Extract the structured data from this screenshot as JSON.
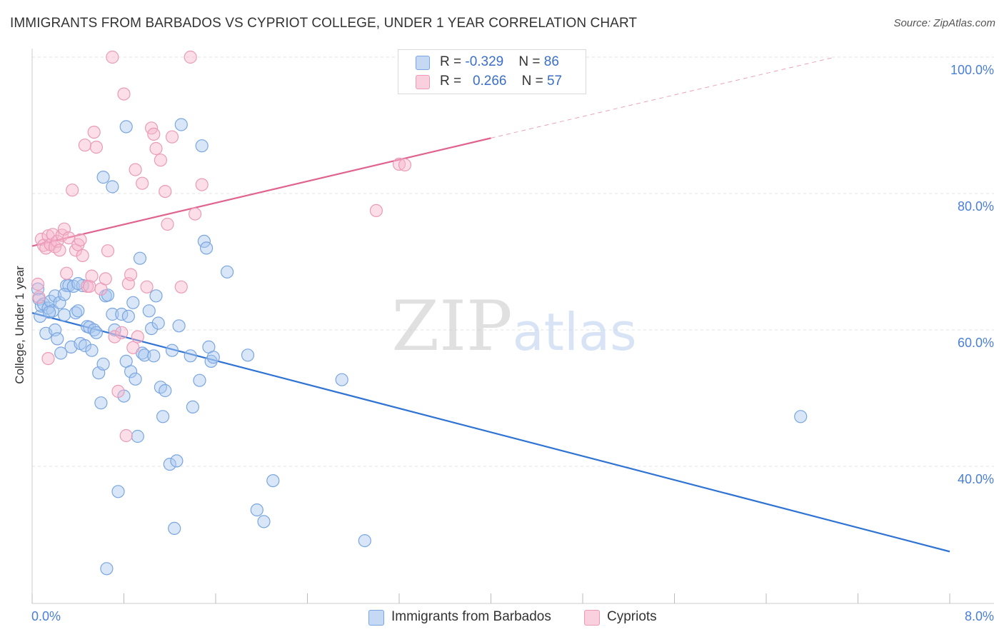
{
  "header": {
    "title": "IMMIGRANTS FROM BARBADOS VS CYPRIOT COLLEGE, UNDER 1 YEAR CORRELATION CHART",
    "source": "Source: ZipAtlas.com"
  },
  "watermark": "ZIPatlas",
  "legend": {
    "series": [
      {
        "r_label": "R = ",
        "r_value": "-0.329",
        "n_label": "N = ",
        "n_value": "86"
      },
      {
        "r_label": "R = ",
        "r_value": "0.266",
        "n_label": "N = ",
        "n_value": "57"
      }
    ]
  },
  "bottom_legend": {
    "items": [
      "Immigrants from Barbados",
      "Cypriots"
    ]
  },
  "colors": {
    "blue_fill": "#a9c7f0",
    "blue_stroke": "#7aa6e0",
    "blue_line": "#2f73d4",
    "pink_fill": "#f6b6cb",
    "pink_stroke": "#ea9bb7",
    "pink_line": "#e0628e",
    "grid": "#e3e3e3",
    "tick_text": "#4a7fd4"
  },
  "chart_data": {
    "type": "scatter",
    "title": "IMMIGRANTS FROM BARBADOS VS CYPRIOT COLLEGE, UNDER 1 YEAR CORRELATION CHART",
    "xlabel": "",
    "ylabel": "College, Under 1 year",
    "xlim": [
      0.0,
      8.0
    ],
    "ylim": [
      20.0,
      100.0
    ],
    "x_tick_labels": [
      "0.0%",
      "8.0%"
    ],
    "y_ticks": [
      40,
      60,
      80,
      100
    ],
    "y_tick_labels": [
      "40.0%",
      "60.0%",
      "80.0%",
      "100.0%"
    ],
    "grid": true,
    "series": [
      {
        "name": "Immigrants from Barbados",
        "color": "blue",
        "R": -0.329,
        "N": 86,
        "trend": {
          "x": [
            0.0,
            8.0
          ],
          "y": [
            62.5,
            27.5
          ],
          "dashed_from": null
        },
        "points": [
          [
            0.05,
            66.0
          ],
          [
            0.06,
            64.5
          ],
          [
            0.07,
            62.0
          ],
          [
            0.08,
            63.5
          ],
          [
            0.1,
            63.8
          ],
          [
            0.12,
            59.5
          ],
          [
            0.14,
            63.2
          ],
          [
            0.16,
            64.2
          ],
          [
            0.18,
            62.8
          ],
          [
            0.2,
            60.0
          ],
          [
            0.2,
            65.0
          ],
          [
            0.22,
            58.7
          ],
          [
            0.24,
            64.0
          ],
          [
            0.25,
            56.6
          ],
          [
            0.28,
            62.2
          ],
          [
            0.3,
            66.5
          ],
          [
            0.32,
            66.5
          ],
          [
            0.34,
            57.5
          ],
          [
            0.36,
            66.4
          ],
          [
            0.38,
            62.5
          ],
          [
            0.4,
            62.8
          ],
          [
            0.42,
            58.0
          ],
          [
            0.44,
            66.5
          ],
          [
            0.46,
            57.7
          ],
          [
            0.48,
            60.5
          ],
          [
            0.5,
            60.4
          ],
          [
            0.52,
            57.0
          ],
          [
            0.54,
            60.0
          ],
          [
            0.56,
            59.6
          ],
          [
            0.58,
            53.7
          ],
          [
            0.6,
            49.3
          ],
          [
            0.62,
            55.0
          ],
          [
            0.64,
            65.0
          ],
          [
            0.66,
            65.1
          ],
          [
            0.7,
            62.3
          ],
          [
            0.72,
            60.0
          ],
          [
            0.75,
            36.3
          ],
          [
            0.78,
            62.3
          ],
          [
            0.8,
            50.3
          ],
          [
            0.82,
            55.4
          ],
          [
            0.84,
            62.0
          ],
          [
            0.86,
            53.9
          ],
          [
            0.88,
            64.0
          ],
          [
            0.9,
            52.8
          ],
          [
            0.92,
            44.4
          ],
          [
            0.94,
            70.5
          ],
          [
            0.96,
            56.6
          ],
          [
            0.98,
            56.3
          ],
          [
            1.02,
            62.8
          ],
          [
            1.04,
            60.2
          ],
          [
            1.06,
            56.2
          ],
          [
            1.08,
            65.0
          ],
          [
            1.1,
            61.0
          ],
          [
            1.12,
            51.6
          ],
          [
            1.14,
            47.3
          ],
          [
            1.16,
            51.1
          ],
          [
            1.2,
            40.3
          ],
          [
            1.22,
            57.0
          ],
          [
            1.24,
            30.9
          ],
          [
            1.26,
            40.8
          ],
          [
            1.28,
            60.6
          ],
          [
            1.3,
            90.1
          ],
          [
            1.38,
            56.2
          ],
          [
            1.4,
            48.7
          ],
          [
            1.46,
            52.6
          ],
          [
            1.48,
            87.0
          ],
          [
            1.5,
            73.0
          ],
          [
            1.52,
            72.0
          ],
          [
            1.54,
            57.5
          ],
          [
            1.56,
            55.4
          ],
          [
            1.58,
            56.0
          ],
          [
            1.7,
            68.5
          ],
          [
            1.88,
            56.3
          ],
          [
            1.96,
            33.6
          ],
          [
            2.02,
            31.9
          ],
          [
            2.1,
            37.9
          ],
          [
            2.7,
            52.7
          ],
          [
            2.9,
            29.1
          ],
          [
            0.65,
            25.0
          ],
          [
            0.62,
            82.4
          ],
          [
            0.7,
            81.0
          ],
          [
            0.82,
            89.8
          ],
          [
            0.15,
            62.6
          ],
          [
            0.28,
            65.2
          ],
          [
            6.7,
            47.3
          ],
          [
            0.4,
            66.8
          ]
        ]
      },
      {
        "name": "Cypriots",
        "color": "pink",
        "R": 0.266,
        "N": 57,
        "trend": {
          "x": [
            0.0,
            7.0
          ],
          "y": [
            72.3,
            100.0
          ],
          "dashed_from": 4.0
        },
        "points": [
          [
            0.05,
            66.7
          ],
          [
            0.06,
            64.8
          ],
          [
            0.08,
            73.3
          ],
          [
            0.1,
            72.4
          ],
          [
            0.12,
            72.0
          ],
          [
            0.14,
            73.8
          ],
          [
            0.16,
            72.5
          ],
          [
            0.18,
            74.0
          ],
          [
            0.2,
            72.2
          ],
          [
            0.22,
            73.0
          ],
          [
            0.24,
            71.7
          ],
          [
            0.26,
            73.9
          ],
          [
            0.28,
            74.8
          ],
          [
            0.3,
            68.3
          ],
          [
            0.32,
            73.5
          ],
          [
            0.35,
            80.5
          ],
          [
            0.38,
            71.7
          ],
          [
            0.4,
            72.5
          ],
          [
            0.42,
            73.2
          ],
          [
            0.44,
            70.9
          ],
          [
            0.46,
            87.1
          ],
          [
            0.48,
            66.4
          ],
          [
            0.5,
            66.4
          ],
          [
            0.52,
            67.9
          ],
          [
            0.54,
            89.0
          ],
          [
            0.56,
            86.8
          ],
          [
            0.6,
            66.0
          ],
          [
            0.64,
            67.5
          ],
          [
            0.66,
            71.6
          ],
          [
            0.7,
            100.0
          ],
          [
            0.72,
            59.0
          ],
          [
            0.75,
            51.0
          ],
          [
            0.78,
            59.6
          ],
          [
            0.8,
            94.6
          ],
          [
            0.82,
            44.5
          ],
          [
            0.84,
            66.8
          ],
          [
            0.86,
            68.1
          ],
          [
            0.88,
            57.4
          ],
          [
            0.9,
            83.5
          ],
          [
            0.92,
            59.0
          ],
          [
            0.96,
            81.5
          ],
          [
            1.0,
            66.3
          ],
          [
            1.04,
            89.6
          ],
          [
            1.06,
            88.7
          ],
          [
            1.08,
            86.6
          ],
          [
            1.12,
            84.9
          ],
          [
            1.16,
            80.3
          ],
          [
            1.18,
            75.5
          ],
          [
            1.22,
            88.3
          ],
          [
            1.3,
            66.3
          ],
          [
            1.38,
            100.0
          ],
          [
            1.42,
            77.0
          ],
          [
            1.48,
            81.3
          ],
          [
            3.0,
            77.5
          ],
          [
            3.2,
            84.3
          ],
          [
            3.25,
            84.2
          ],
          [
            0.14,
            55.8
          ]
        ]
      }
    ]
  }
}
